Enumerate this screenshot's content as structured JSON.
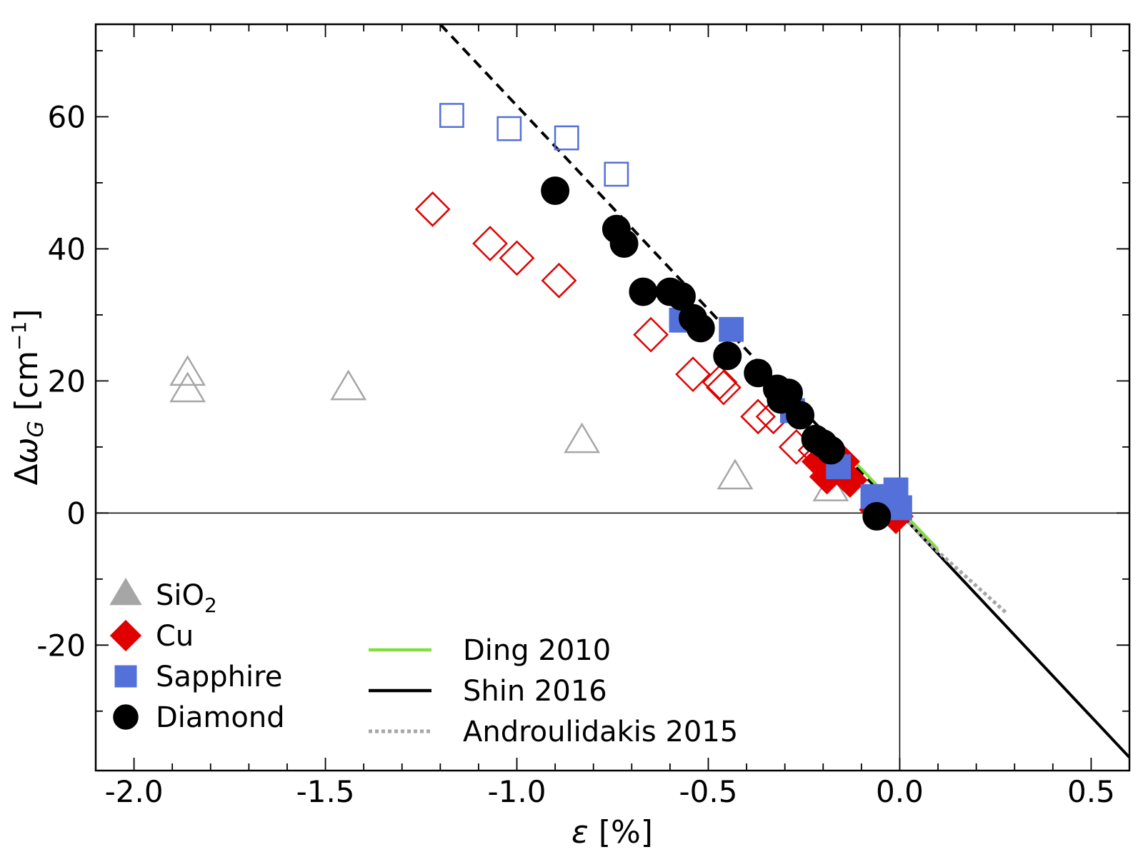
{
  "chart_data": {
    "type": "scatter",
    "xlabel": "ε [%]",
    "ylabel": "Δω_G [cm^-1]",
    "xlim": [
      -2.1,
      0.6
    ],
    "ylim": [
      -39,
      74
    ],
    "xticks": [
      -2.0,
      -1.5,
      -1.0,
      -0.5,
      0.0,
      0.5
    ],
    "xtick_labels": [
      "-2.0",
      "-1.5",
      "-1.0",
      "-0.5",
      "0.0",
      "0.5"
    ],
    "yticks": [
      -20,
      0,
      20,
      40,
      60
    ],
    "ytick_labels": [
      "-20",
      "0",
      "20",
      "40",
      "60"
    ],
    "grid": false,
    "reference_lines": {
      "x": 0,
      "y": 0
    },
    "legend_markers": [
      {
        "label": "SiO",
        "sub": "2",
        "marker": "triangle",
        "color": "#a6a6a6"
      },
      {
        "label": "Cu",
        "marker": "diamond",
        "color": "#e00000"
      },
      {
        "label": "Sapphire",
        "marker": "square",
        "color": "#5470d9"
      },
      {
        "label": "Diamond",
        "marker": "circle",
        "color": "#000000"
      }
    ],
    "legend_lines": [
      {
        "label": "Ding 2010",
        "color": "#7fe03b",
        "style": "solid"
      },
      {
        "label": "Shin 2016",
        "color": "#000000",
        "style": "solid"
      },
      {
        "label": "Androulidakis 2015",
        "color": "#a6a6a6",
        "style": "dotted"
      }
    ],
    "series": [
      {
        "name": "SiO2",
        "marker": "triangle",
        "filled": false,
        "color": "#a6a6a6",
        "points": [
          [
            -1.86,
            21.0
          ],
          [
            -1.86,
            18.5
          ],
          [
            -1.44,
            18.8
          ],
          [
            -0.83,
            10.8
          ],
          [
            -0.43,
            5.3
          ],
          [
            -0.18,
            3.5
          ]
        ]
      },
      {
        "name": "Cu",
        "marker": "diamond",
        "filled": false,
        "color": "#e00000",
        "points": [
          [
            -1.22,
            46.0
          ],
          [
            -1.07,
            40.8
          ],
          [
            -1.0,
            38.6
          ],
          [
            -0.89,
            35.2
          ],
          [
            -0.65,
            27.0
          ],
          [
            -0.54,
            21.0
          ],
          [
            -0.47,
            19.8
          ],
          [
            -0.46,
            19.0
          ],
          [
            -0.37,
            14.6
          ],
          [
            -0.33,
            14.6
          ],
          [
            -0.27,
            10.0
          ],
          [
            -0.22,
            9.5
          ]
        ]
      },
      {
        "name": "Cu",
        "marker": "diamond",
        "filled": true,
        "color": "#e00000",
        "points": [
          [
            -0.21,
            7.8
          ],
          [
            -0.19,
            5.5
          ],
          [
            -0.15,
            7.8
          ],
          [
            -0.13,
            5.0
          ],
          [
            -0.06,
            0.5
          ],
          [
            -0.04,
            1.0
          ],
          [
            -0.02,
            0.8
          ],
          [
            -0.01,
            -0.5
          ]
        ]
      },
      {
        "name": "Sapphire",
        "marker": "square",
        "filled": false,
        "color": "#5470d9",
        "points": [
          [
            -1.17,
            60.2
          ],
          [
            -1.02,
            58.2
          ],
          [
            -0.87,
            56.8
          ],
          [
            -0.74,
            51.3
          ]
        ]
      },
      {
        "name": "Sapphire",
        "marker": "square",
        "filled": true,
        "color": "#5470d9",
        "points": [
          [
            -0.57,
            29.2
          ],
          [
            -0.44,
            27.8
          ],
          [
            -0.28,
            15.5
          ],
          [
            -0.16,
            7.0
          ],
          [
            -0.07,
            2.5
          ],
          [
            -0.01,
            3.5
          ],
          [
            -0.01,
            1.8
          ],
          [
            0.0,
            0.8
          ]
        ]
      },
      {
        "name": "Diamond",
        "marker": "circle",
        "filled": true,
        "color": "#000000",
        "points": [
          [
            -0.9,
            48.8
          ],
          [
            -0.74,
            43.0
          ],
          [
            -0.72,
            40.8
          ],
          [
            -0.67,
            33.5
          ],
          [
            -0.6,
            33.5
          ],
          [
            -0.57,
            32.8
          ],
          [
            -0.54,
            29.5
          ],
          [
            -0.52,
            28.0
          ],
          [
            -0.45,
            23.8
          ],
          [
            -0.37,
            21.2
          ],
          [
            -0.32,
            18.8
          ],
          [
            -0.31,
            17.2
          ],
          [
            -0.29,
            18.2
          ],
          [
            -0.26,
            14.8
          ],
          [
            -0.22,
            11.2
          ],
          [
            -0.2,
            10.5
          ],
          [
            -0.18,
            9.5
          ],
          [
            -0.06,
            -0.5
          ]
        ]
      }
    ],
    "lines": [
      {
        "name": "Shin 2016 (dashed extension)",
        "color": "#000000",
        "style": "dashed",
        "points": [
          [
            -1.2,
            74
          ],
          [
            0.0,
            0
          ]
        ]
      },
      {
        "name": "Shin 2016",
        "color": "#000000",
        "style": "solid",
        "points": [
          [
            0.0,
            0
          ],
          [
            0.6,
            -37
          ]
        ]
      },
      {
        "name": "Ding 2010",
        "color": "#7fe03b",
        "style": "solid",
        "points": [
          [
            -0.13,
            8.5
          ],
          [
            0.1,
            -5.5
          ]
        ]
      },
      {
        "name": "Androulidakis 2015",
        "color": "#a6a6a6",
        "style": "dotted",
        "points": [
          [
            0.0,
            0
          ],
          [
            0.08,
            -4.8
          ],
          [
            0.28,
            -15.2
          ]
        ]
      }
    ]
  }
}
